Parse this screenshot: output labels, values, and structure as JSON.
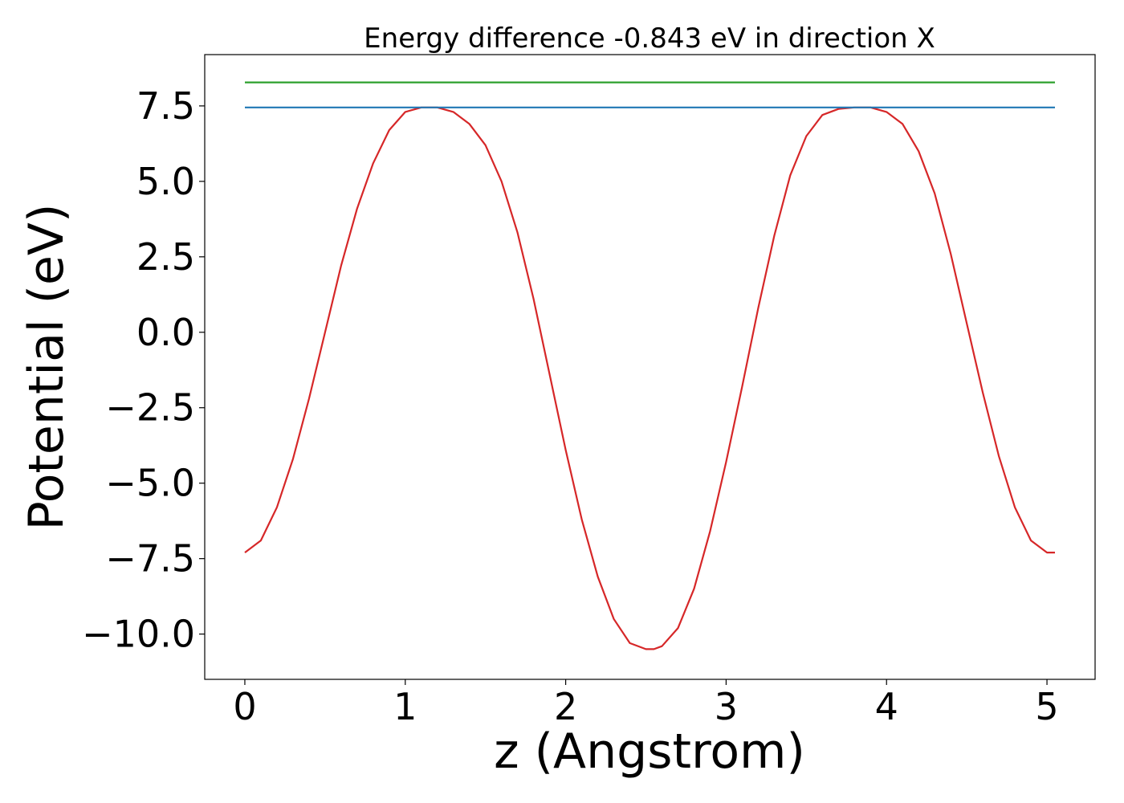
{
  "chart_data": {
    "type": "line",
    "title": "Energy difference -0.843 eV in direction X",
    "xlabel": "z (Angstrom)",
    "ylabel": "Potential (eV)",
    "xlim": [
      -0.25,
      5.3
    ],
    "ylim": [
      -11.5,
      9.2
    ],
    "x_ticks": [
      0,
      1,
      2,
      3,
      4,
      5
    ],
    "x_tick_labels": [
      "0",
      "1",
      "2",
      "3",
      "4",
      "5"
    ],
    "y_ticks": [
      -10.0,
      -7.5,
      -5.0,
      -2.5,
      0.0,
      2.5,
      5.0,
      7.5
    ],
    "y_tick_labels": [
      "−10.0",
      "−7.5",
      "−5.0",
      "−2.5",
      "0.0",
      "2.5",
      "5.0",
      "7.5"
    ],
    "grid": false,
    "legend": "none",
    "series": [
      {
        "color": "#d62728",
        "x": [
          0.0,
          0.1,
          0.2,
          0.3,
          0.4,
          0.5,
          0.6,
          0.7,
          0.8,
          0.9,
          1.0,
          1.1,
          1.2,
          1.3,
          1.4,
          1.5,
          1.6,
          1.7,
          1.8,
          1.9,
          2.0,
          2.1,
          2.2,
          2.3,
          2.4,
          2.5,
          2.55,
          2.6,
          2.7,
          2.8,
          2.9,
          3.0,
          3.1,
          3.2,
          3.3,
          3.4,
          3.5,
          3.6,
          3.7,
          3.8,
          3.9,
          4.0,
          4.1,
          4.2,
          4.3,
          4.4,
          4.5,
          4.6,
          4.7,
          4.8,
          4.9,
          5.0,
          5.05
        ],
        "y": [
          -7.3,
          -6.9,
          -5.8,
          -4.2,
          -2.2,
          0.0,
          2.2,
          4.1,
          5.6,
          6.7,
          7.3,
          7.45,
          7.45,
          7.3,
          6.9,
          6.2,
          5.0,
          3.3,
          1.1,
          -1.4,
          -3.9,
          -6.2,
          -8.1,
          -9.5,
          -10.3,
          -10.5,
          -10.5,
          -10.4,
          -9.8,
          -8.5,
          -6.6,
          -4.3,
          -1.8,
          0.8,
          3.2,
          5.2,
          6.5,
          7.2,
          7.4,
          7.45,
          7.45,
          7.3,
          6.9,
          6.0,
          4.6,
          2.6,
          0.3,
          -2.0,
          -4.1,
          -5.8,
          -6.9,
          -7.3,
          -7.3
        ]
      },
      {
        "color": "#1f77b4",
        "x": [
          0.0,
          5.05
        ],
        "y": [
          7.45,
          7.45
        ]
      },
      {
        "color": "#2ca02c",
        "x": [
          0.0,
          5.05
        ],
        "y": [
          8.28,
          8.28
        ]
      }
    ]
  }
}
